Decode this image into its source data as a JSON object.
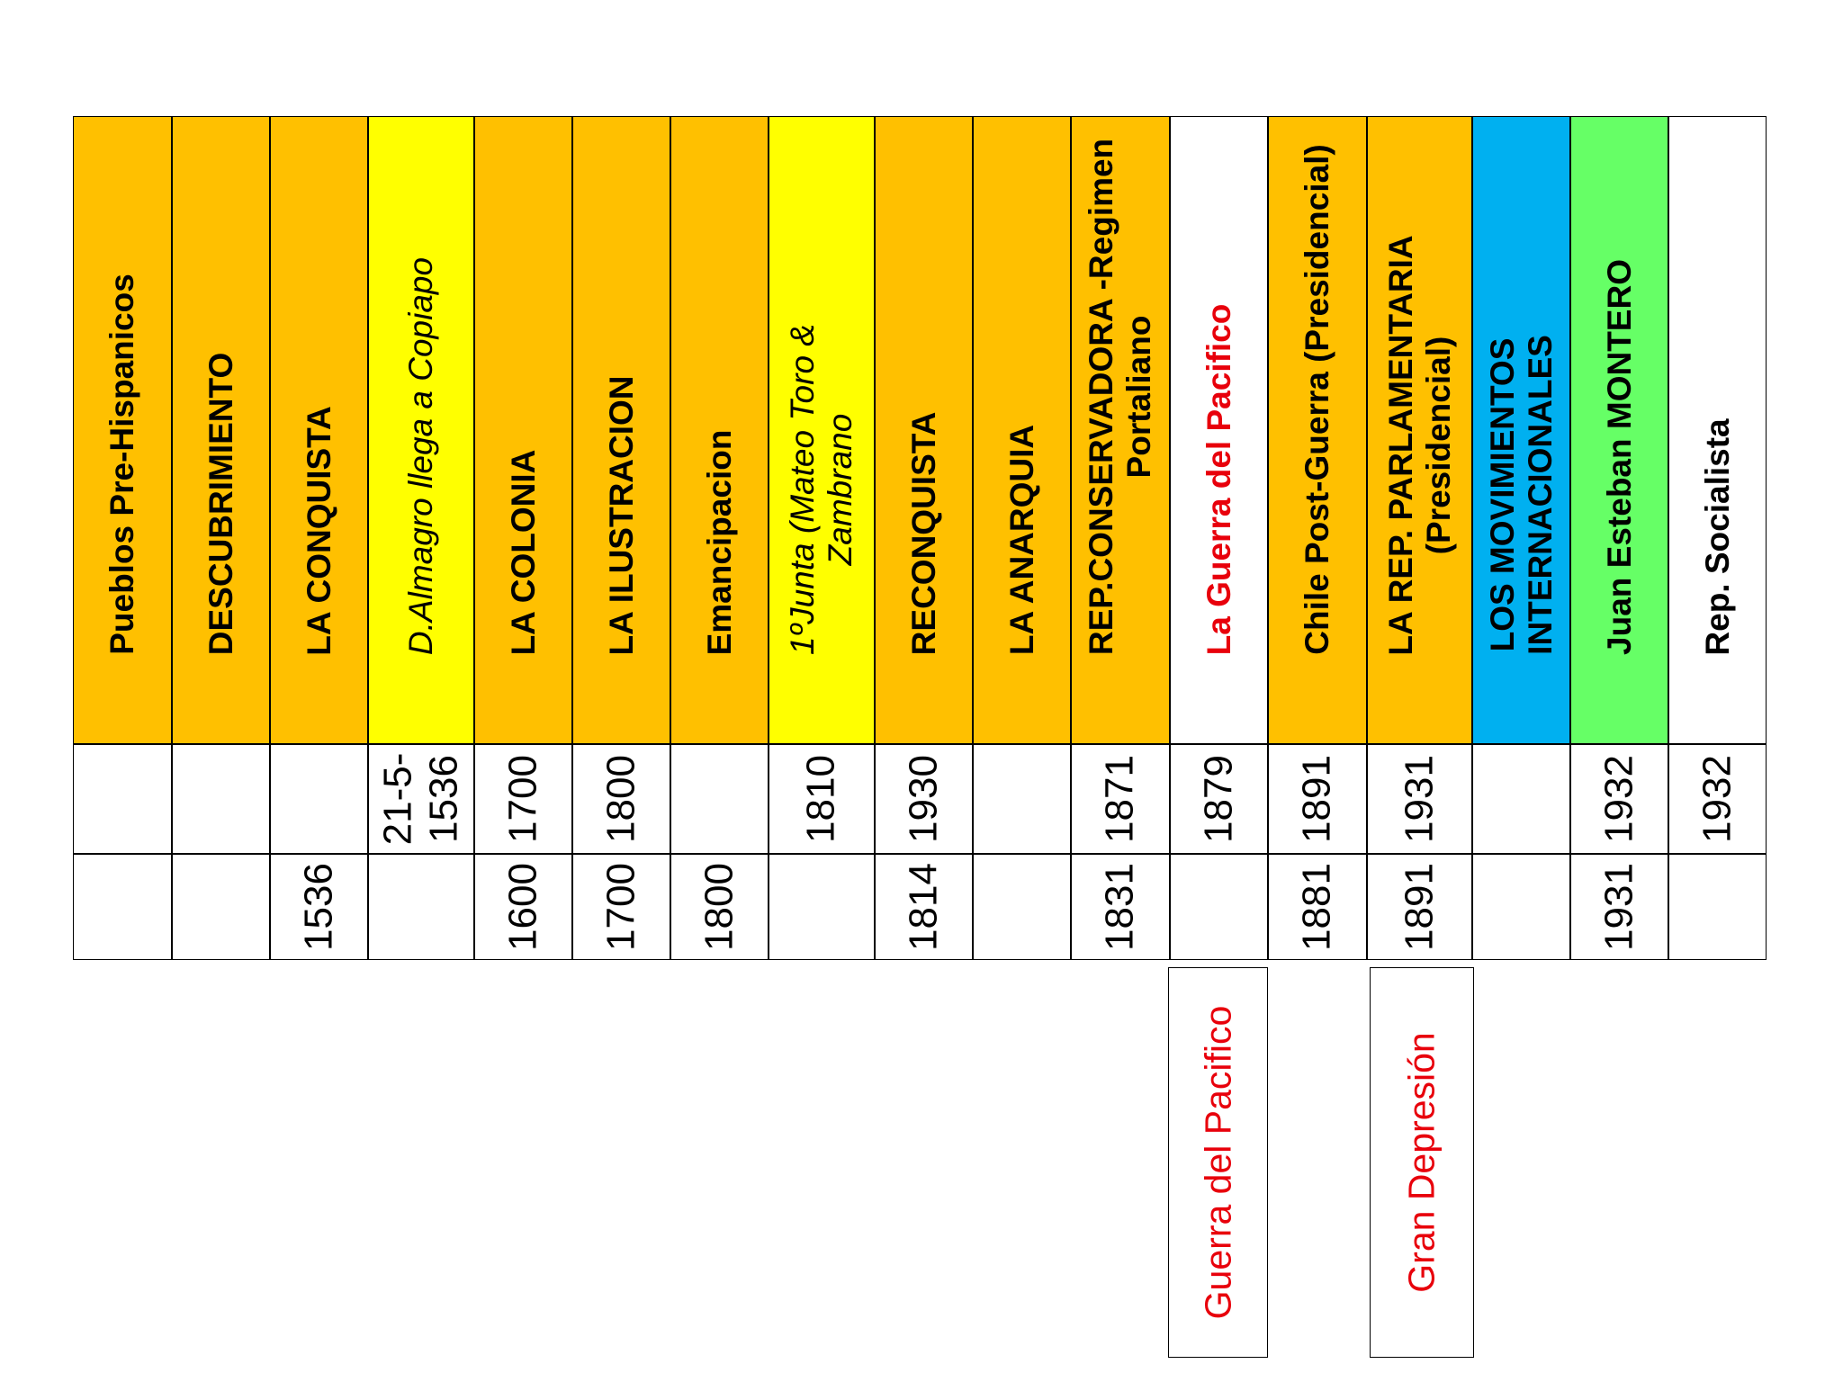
{
  "colors": {
    "orange": "#ffc000",
    "yellow": "#ffff00",
    "white": "#ffffff",
    "blue": "#00b0f0",
    "green": "#66ff66",
    "red_text": "#e8000b"
  },
  "columns": [
    {
      "id": "pueblos",
      "label": "Pueblos Pre-Hispanicos",
      "fill": "orange",
      "end": "",
      "start": ""
    },
    {
      "id": "descubrimiento",
      "label": "DESCUBRIMIENTO",
      "fill": "orange",
      "end": "",
      "start": ""
    },
    {
      "id": "conquista",
      "label": "LA CONQUISTA",
      "fill": "orange",
      "end": "",
      "start": "1536"
    },
    {
      "id": "almagro",
      "label": "D.Almagro llega a Copiapo",
      "fill": "yellow",
      "italic": true,
      "end": "21-5-\n1536",
      "start": ""
    },
    {
      "id": "colonia",
      "label": "LA COLONIA",
      "fill": "orange",
      "end": "1700",
      "start": "1600"
    },
    {
      "id": "ilustracion",
      "label": "LA ILUSTRACION",
      "fill": "orange",
      "end": "1800",
      "start": "1700"
    },
    {
      "id": "emancipacion",
      "label": "Emancipacion",
      "fill": "orange",
      "end": "",
      "start": "1800"
    },
    {
      "id": "junta",
      "label": "1ºJunta (Mateo Toro &\nZambrano",
      "fill": "yellow",
      "italic": true,
      "end": "1810",
      "start": ""
    },
    {
      "id": "reconquista",
      "label": "RECONQUISTA",
      "fill": "orange",
      "end": "1930",
      "start": "1814"
    },
    {
      "id": "anarquia",
      "label": "LA ANARQUIA",
      "fill": "orange",
      "end": "",
      "start": ""
    },
    {
      "id": "rep_conservadora",
      "label": "REP.CONSERVADORA -Regimen\nPortaliano",
      "fill": "orange",
      "end": "1871",
      "start": "1831"
    },
    {
      "id": "guerra_pacifico",
      "label": "La Guerra del Pacifico",
      "fill": "white",
      "red": true,
      "end": "1879",
      "start": ""
    },
    {
      "id": "post_guerra",
      "label": "Chile Post-Guerra (Presidencial)",
      "fill": "orange",
      "end": "1891",
      "start": "1881"
    },
    {
      "id": "rep_parlamentaria",
      "label": "LA REP. PARLAMENTARIA\n(Presidencial)",
      "fill": "orange",
      "end": "1931",
      "start": "1891"
    },
    {
      "id": "movimientos",
      "label": "LOS MOVIMIENTOS\nINTERNACIONALES",
      "fill": "blue",
      "end": "",
      "start": ""
    },
    {
      "id": "montero",
      "label": "Juan Esteban MONTERO",
      "fill": "green",
      "end": "1932",
      "start": "1931"
    },
    {
      "id": "socialista",
      "label": "Rep. Socialista",
      "fill": "white",
      "end": "1932",
      "start": ""
    }
  ],
  "notes": [
    {
      "id": "guerra",
      "text": "Guerra del Pacifico"
    },
    {
      "id": "depresion",
      "text": "Gran Depresión"
    }
  ]
}
